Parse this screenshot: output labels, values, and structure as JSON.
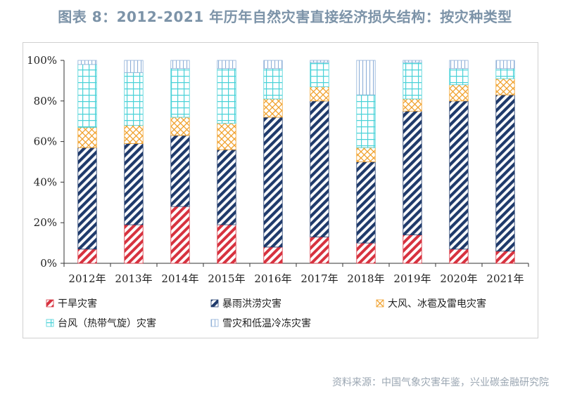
{
  "title": "图表 8：2012-2021 年历年自然灾害直接经济损失结构：按灾种类型",
  "source": "资料来源：中国气象灾害年鉴，兴业碳金融研究院",
  "colors": {
    "drought": "#d7323f",
    "rain": "#1f3a6b",
    "wind": "#f0a02a",
    "typhoon": "#4ad2d8",
    "snow": "#8fb0d8"
  },
  "chart_data": {
    "type": "bar",
    "stacked": true,
    "categories": [
      "2012年",
      "2013年",
      "2014年",
      "2015年",
      "2016年",
      "2017年",
      "2018年",
      "2019年",
      "2020年",
      "2021年"
    ],
    "ylim": [
      0,
      100
    ],
    "yticks": [
      "0%",
      "20%",
      "40%",
      "60%",
      "80%",
      "100%"
    ],
    "grid": false,
    "legend_position": "bottom",
    "series": [
      {
        "name": "干旱灾害",
        "key": "drought",
        "pattern": "hatch-red",
        "values": [
          7,
          19,
          28,
          19,
          8,
          13,
          10,
          14,
          7,
          6
        ]
      },
      {
        "name": "暴雨洪涝灾害",
        "key": "rain",
        "pattern": "hatch-blue",
        "values": [
          50,
          40,
          35,
          37,
          64,
          67,
          40,
          61,
          73,
          77
        ]
      },
      {
        "name": "大风、冰雹及雷电灾害",
        "key": "wind",
        "pattern": "cross-orange",
        "values": [
          10,
          9,
          9,
          13,
          9,
          7,
          7,
          6,
          8,
          8
        ]
      },
      {
        "name": "台风（热带气旋）灾害",
        "key": "typhoon",
        "pattern": "grid-cyan",
        "values": [
          31,
          26,
          24,
          27,
          15,
          12,
          26,
          18,
          8,
          5
        ]
      },
      {
        "name": "雪灾和低温冷冻灾害",
        "key": "snow",
        "pattern": "vert-blue",
        "values": [
          2,
          6,
          4,
          4,
          4,
          1,
          17,
          1,
          4,
          4
        ]
      }
    ]
  }
}
